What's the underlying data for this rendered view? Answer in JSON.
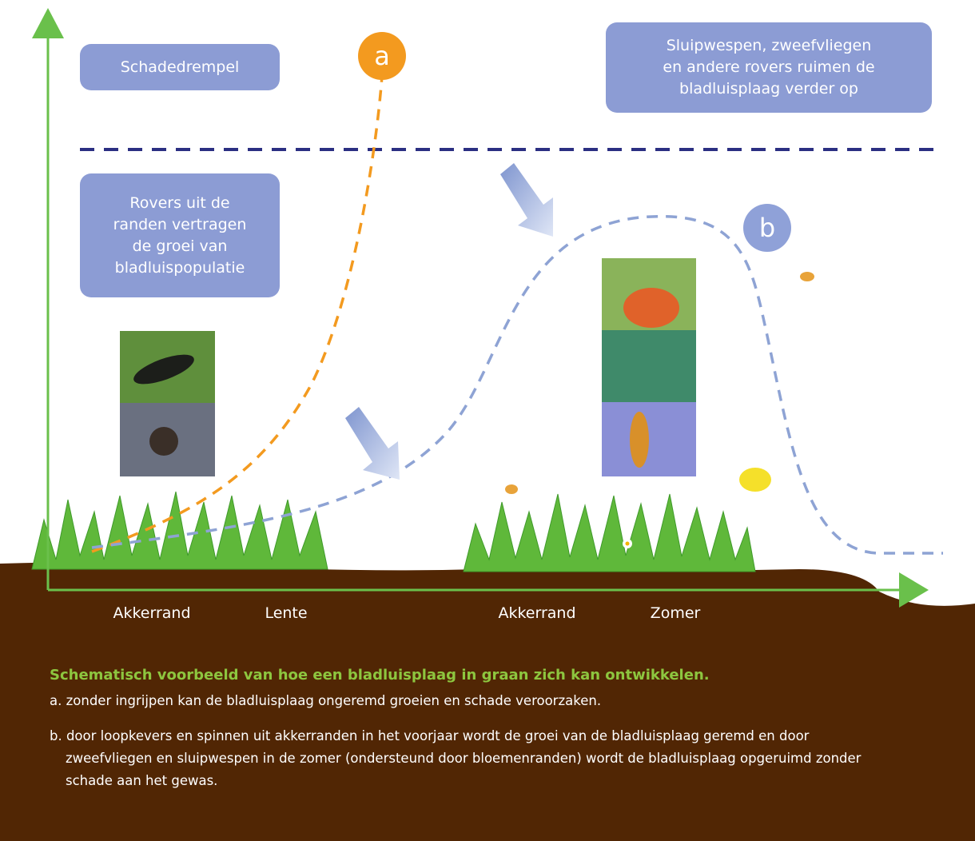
{
  "boxes": {
    "threshold": {
      "lines": [
        "Schadedrempel"
      ]
    },
    "summer": {
      "lines": [
        "Sluipwespen, zweefvliegen",
        "en andere rovers ruimen de",
        "bladluisplaag verder op"
      ]
    },
    "spring": {
      "lines": [
        "Rovers uit de",
        "randen vertragen",
        "de groei van",
        "bladluispopulatie"
      ]
    }
  },
  "curves": {
    "a": {
      "label": "a"
    },
    "b": {
      "label": "b"
    }
  },
  "x_labels": [
    "Akkerrand",
    "Lente",
    "Akkerrand",
    "Zomer"
  ],
  "caption": {
    "title": "Schematisch voorbeeld van hoe een bladluisplaag in graan zich kan ontwikkelen.",
    "items": [
      "a. zonder ingrijpen kan de bladluisplaag ongeremd groeien en schade veroorzaken.",
      "b. door loopkevers en spinnen uit akkerranden in het voorjaar wordt de groei van de bladluisplaag geremd en door zweefvliegen en sluipwespen in de zomer (ondersteund door bloemenranden) wordt de bladluisplaag opgeruimd zonder schade aan het gewas."
    ]
  }
}
